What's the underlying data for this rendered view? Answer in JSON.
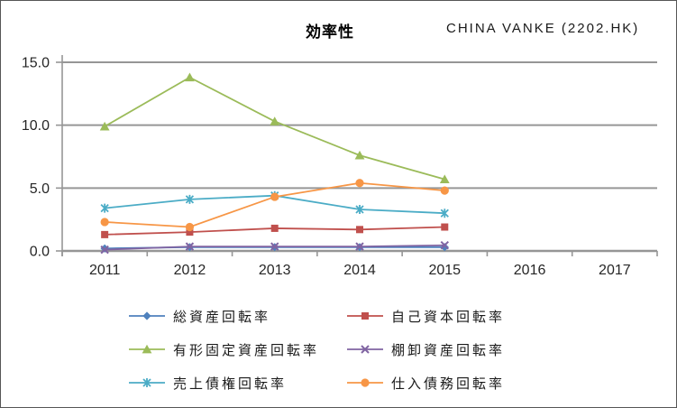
{
  "header": {
    "title": "効率性",
    "ticker": "CHINA VANKE (2202.HK)"
  },
  "chart_data": {
    "type": "line",
    "title": "効率性",
    "subtitle": "CHINA VANKE (2202.HK)",
    "categories": [
      "2011",
      "2012",
      "2013",
      "2014",
      "2015",
      "2016",
      "2017"
    ],
    "ylim": [
      0,
      15
    ],
    "yticks": [
      0,
      5,
      10,
      15
    ],
    "ytick_labels": [
      "0.0",
      "5.0",
      "10.0",
      "15.0"
    ],
    "grid": true,
    "legend_position": "bottom",
    "axis_color": "#969696",
    "label_color": "#262626",
    "series": [
      {
        "name": "総資産回転率",
        "marker": "diamond",
        "color": "#4F81BD",
        "values": [
          0.2,
          0.3,
          0.3,
          0.3,
          0.3,
          null,
          null
        ]
      },
      {
        "name": "自己資本回転率",
        "marker": "square",
        "color": "#C0504D",
        "values": [
          1.3,
          1.5,
          1.8,
          1.7,
          1.9,
          null,
          null
        ]
      },
      {
        "name": "有形固定資産回転率",
        "marker": "triangle",
        "color": "#9BBB59",
        "values": [
          9.9,
          13.8,
          10.3,
          7.6,
          5.7,
          null,
          null
        ]
      },
      {
        "name": "棚卸資産回転率",
        "marker": "x",
        "color": "#8064A2",
        "values": [
          0.1,
          0.35,
          0.35,
          0.35,
          0.45,
          null,
          null
        ]
      },
      {
        "name": "売上債権回転率",
        "marker": "star",
        "color": "#4BACC6",
        "values": [
          3.4,
          4.1,
          4.4,
          3.3,
          3.0,
          null,
          null
        ]
      },
      {
        "name": "仕入債務回転率",
        "marker": "circle",
        "color": "#F79646",
        "values": [
          2.3,
          1.9,
          4.3,
          5.4,
          4.8,
          null,
          null
        ]
      }
    ]
  }
}
